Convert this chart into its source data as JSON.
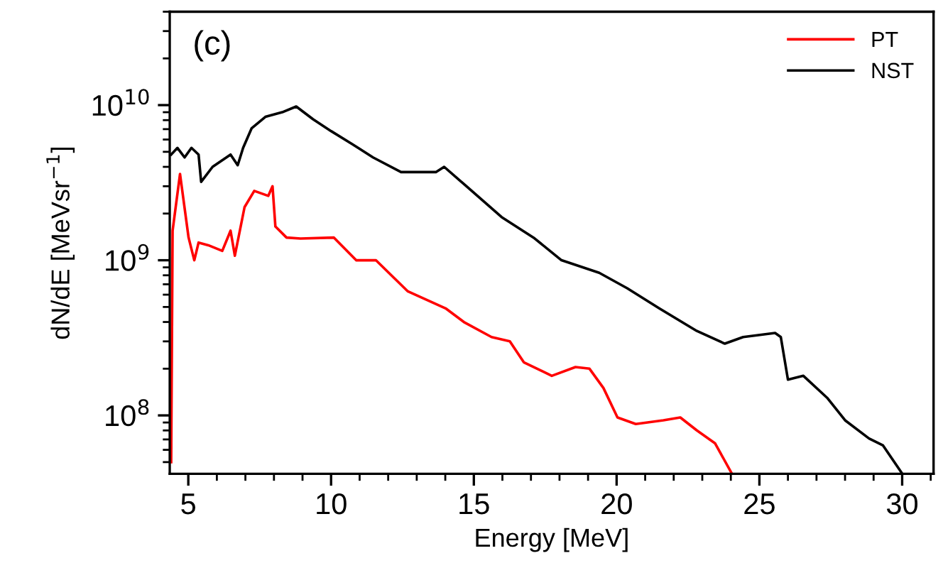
{
  "chart_data": {
    "type": "line",
    "xlabel": "Energy [MeV]",
    "ylabel": "dN/dE [MeVsr$^{−1}$]",
    "annotations": [
      "(c)"
    ],
    "log": "y",
    "xlim": [
      4.35,
      31.1
    ],
    "xticks": [
      5,
      10,
      15,
      20,
      25,
      30
    ],
    "ylim": [
      42000000.0,
      40000000000.0
    ],
    "yticks": [
      {
        "value": 100000000.0,
        "label": "10$^{8}$"
      },
      {
        "value": 1000000000.0,
        "label": "10$^{9}$"
      },
      {
        "value": 10000000000.0,
        "label": "10$^{10}$"
      }
    ],
    "legend": "top right",
    "grid": false,
    "marker": "none",
    "line_style": "solid",
    "series": [
      {
        "name": "PT",
        "color": "#ff0000",
        "x": [
          4.4,
          4.45,
          4.71,
          5.01,
          5.21,
          5.36,
          5.7,
          6.19,
          6.48,
          6.63,
          6.97,
          7.31,
          7.8,
          7.95,
          8.05,
          8.44,
          8.93,
          10.1,
          10.88,
          11.57,
          12.69,
          14.01,
          14.65,
          15.62,
          16.26,
          16.75,
          17.73,
          18.56,
          19.05,
          19.54,
          20.03,
          20.67,
          21.64,
          22.23,
          22.81,
          23.45,
          24.04
        ],
        "values": [
          50000000.0,
          1550000000.0,
          3600000000.0,
          1400000000.0,
          1000000000.0,
          1300000000.0,
          1250000000.0,
          1150000000.0,
          1550000000.0,
          1070000000.0,
          2200000000.0,
          2800000000.0,
          2600000000.0,
          3000000000.0,
          1650000000.0,
          1400000000.0,
          1380000000.0,
          1400000000.0,
          1000000000.0,
          1000000000.0,
          630000000.0,
          490000000.0,
          400000000.0,
          320000000.0,
          300000000.0,
          220000000.0,
          180000000.0,
          205000000.0,
          200000000.0,
          150000000.0,
          97000000.0,
          88000000.0,
          93000000.0,
          97000000.0,
          80000000.0,
          66000000.0,
          42000000.0
        ]
      },
      {
        "name": "NST",
        "color": "#000000",
        "x": [
          4.4,
          4.62,
          4.87,
          5.11,
          5.36,
          5.45,
          5.85,
          6.48,
          6.73,
          6.92,
          7.22,
          7.7,
          8.29,
          8.78,
          9.37,
          10.0,
          10.74,
          11.47,
          12.45,
          13.67,
          13.96,
          14.65,
          15.97,
          17.09,
          18.07,
          19.39,
          20.37,
          21.49,
          22.81,
          23.79,
          24.43,
          25.55,
          25.75,
          26.0,
          26.54,
          27.37,
          28.0,
          28.84,
          29.33,
          29.97
        ],
        "values": [
          4800000000.0,
          5300000000.0,
          4600000000.0,
          5300000000.0,
          4800000000.0,
          3200000000.0,
          4000000000.0,
          4800000000.0,
          4100000000.0,
          5300000000.0,
          7100000000.0,
          8400000000.0,
          9000000000.0,
          9800000000.0,
          8100000000.0,
          6800000000.0,
          5600000000.0,
          4600000000.0,
          3700000000.0,
          3700000000.0,
          4000000000.0,
          3100000000.0,
          1900000000.0,
          1400000000.0,
          1000000000.0,
          830000000.0,
          660000000.0,
          490000000.0,
          350000000.0,
          290000000.0,
          320000000.0,
          340000000.0,
          320000000.0,
          170000000.0,
          180000000.0,
          130000000.0,
          93000000.0,
          71000000.0,
          64000000.0,
          43000000.0
        ]
      }
    ]
  }
}
